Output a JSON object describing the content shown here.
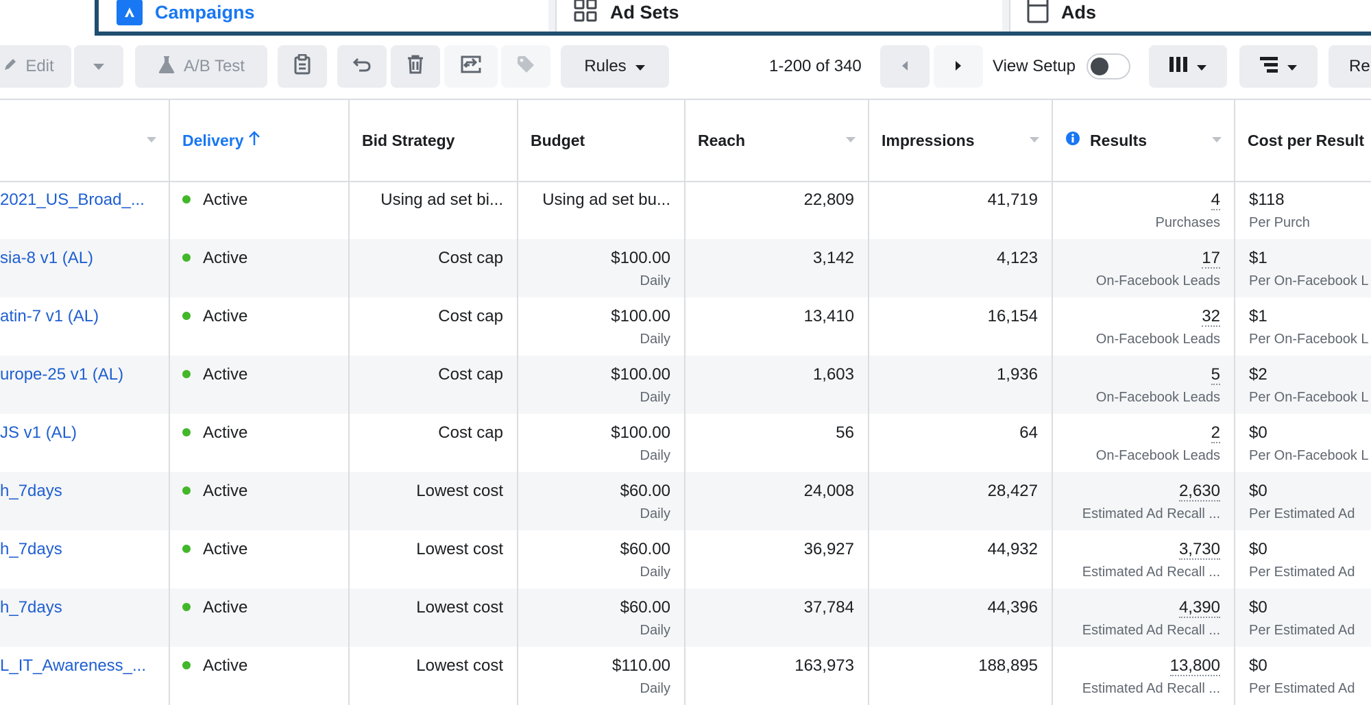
{
  "tabs": {
    "campaigns": "Campaigns",
    "ad_sets": "Ad Sets",
    "ads": "Ads"
  },
  "toolbar": {
    "edit": "Edit",
    "ab_test": "A/B Test",
    "rules": "Rules",
    "pagination": "1-200 of 340",
    "view_setup": "View Setup",
    "reports_partial": "Rep"
  },
  "columns": {
    "delivery": "Delivery",
    "bid_strategy": "Bid Strategy",
    "budget": "Budget",
    "reach": "Reach",
    "impressions": "Impressions",
    "results": "Results",
    "cost_per_result": "Cost per Result"
  },
  "rows": [
    {
      "name": "2021_US_Broad_...",
      "delivery": "Active",
      "bid": "Using ad set bi...",
      "budget": "Using ad set bu...",
      "budget_sub": "",
      "reach": "22,809",
      "impressions": "41,719",
      "results": "4",
      "results_sub": "Purchases",
      "cpr": "$118",
      "cpr_sub": "Per Purch"
    },
    {
      "name": "sia-8 v1 (AL)",
      "delivery": "Active",
      "bid": "Cost cap",
      "budget": "$100.00",
      "budget_sub": "Daily",
      "reach": "3,142",
      "impressions": "4,123",
      "results": "17",
      "results_sub": "On-Facebook Leads",
      "cpr": "$1",
      "cpr_sub": "Per On-Facebook L"
    },
    {
      "name": "atin-7 v1 (AL)",
      "delivery": "Active",
      "bid": "Cost cap",
      "budget": "$100.00",
      "budget_sub": "Daily",
      "reach": "13,410",
      "impressions": "16,154",
      "results": "32",
      "results_sub": "On-Facebook Leads",
      "cpr": "$1",
      "cpr_sub": "Per On-Facebook L"
    },
    {
      "name": "urope-25 v1 (AL)",
      "delivery": "Active",
      "bid": "Cost cap",
      "budget": "$100.00",
      "budget_sub": "Daily",
      "reach": "1,603",
      "impressions": "1,936",
      "results": "5",
      "results_sub": "On-Facebook Leads",
      "cpr": "$2",
      "cpr_sub": "Per On-Facebook L"
    },
    {
      "name": "JS v1 (AL)",
      "delivery": "Active",
      "bid": "Cost cap",
      "budget": "$100.00",
      "budget_sub": "Daily",
      "reach": "56",
      "impressions": "64",
      "results": "2",
      "results_sub": "On-Facebook Leads",
      "cpr": "$0",
      "cpr_sub": "Per On-Facebook L"
    },
    {
      "name": "h_7days",
      "delivery": "Active",
      "bid": "Lowest cost",
      "budget": "$60.00",
      "budget_sub": "Daily",
      "reach": "24,008",
      "impressions": "28,427",
      "results": "2,630",
      "results_sub": "Estimated Ad Recall ...",
      "cpr": "$0",
      "cpr_sub": "Per Estimated Ad"
    },
    {
      "name": "h_7days",
      "delivery": "Active",
      "bid": "Lowest cost",
      "budget": "$60.00",
      "budget_sub": "Daily",
      "reach": "36,927",
      "impressions": "44,932",
      "results": "3,730",
      "results_sub": "Estimated Ad Recall ...",
      "cpr": "$0",
      "cpr_sub": "Per Estimated Ad"
    },
    {
      "name": "h_7days",
      "delivery": "Active",
      "bid": "Lowest cost",
      "budget": "$60.00",
      "budget_sub": "Daily",
      "reach": "37,784",
      "impressions": "44,396",
      "results": "4,390",
      "results_sub": "Estimated Ad Recall ...",
      "cpr": "$0",
      "cpr_sub": "Per Estimated Ad"
    },
    {
      "name": "L_IT_Awareness_...",
      "delivery": "Active",
      "bid": "Lowest cost",
      "budget": "$110.00",
      "budget_sub": "Daily",
      "reach": "163,973",
      "impressions": "188,895",
      "results": "13,800",
      "results_sub": "Estimated Ad Recall ...",
      "cpr": "$0",
      "cpr_sub": "Per Estimated Ad"
    }
  ]
}
